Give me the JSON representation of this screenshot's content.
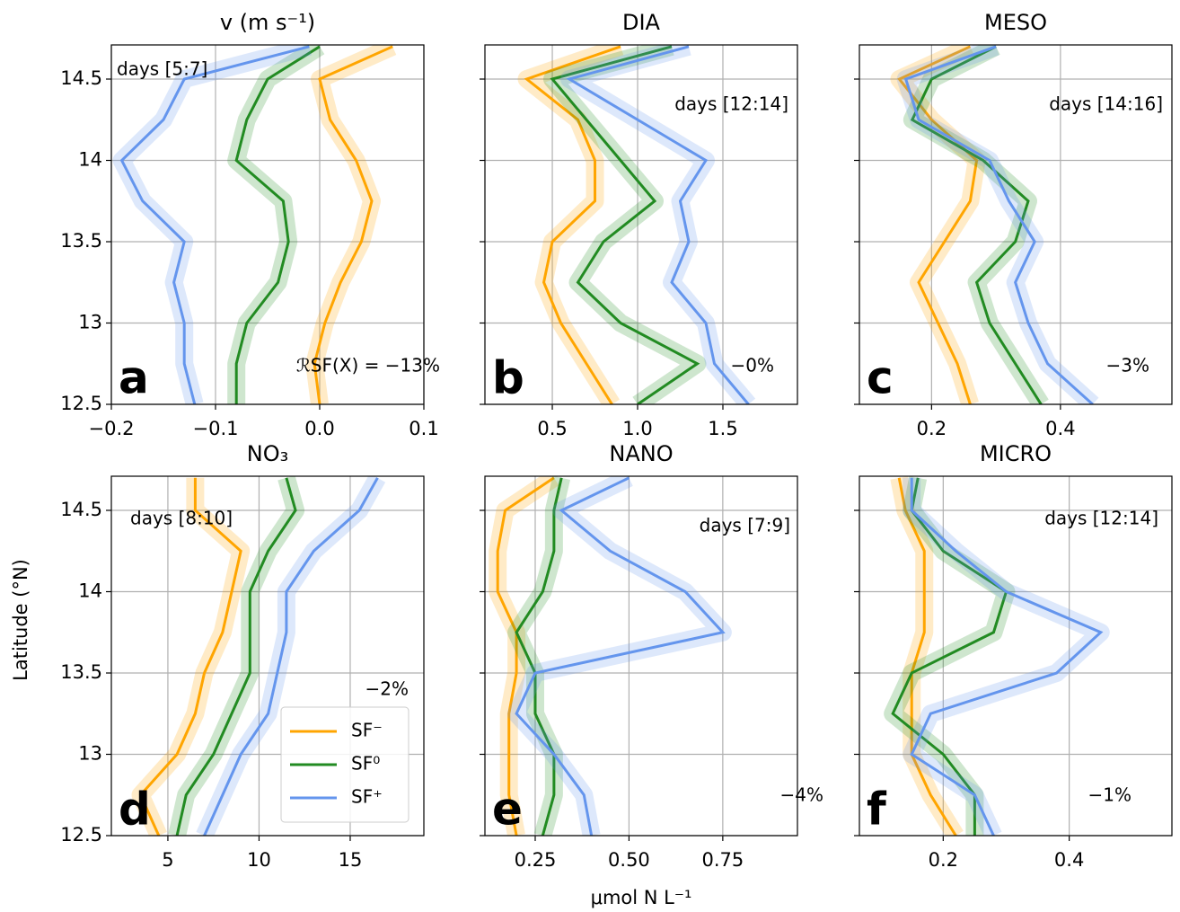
{
  "figure": {
    "xlabel": "μmol N L⁻¹",
    "ylabel": "Latitude (°N)"
  },
  "chart_data": [
    {
      "type": "line",
      "title": "v (m s⁻¹)",
      "panel_label": "a",
      "annotation": "days [5:7]",
      "stat": "ℛSF(X) = −13%",
      "y": [
        12.5,
        12.75,
        13,
        13.25,
        13.5,
        13.75,
        14,
        14.25,
        14.5,
        14.7
      ],
      "xlim": [
        -0.2,
        0.1
      ],
      "xticks": [
        {
          "value": -0.2,
          "label": "−0.2"
        },
        {
          "value": -0.1,
          "label": "−0.1"
        },
        {
          "value": 0,
          "label": "0.0"
        },
        0.1
      ],
      "ylim": [
        12.5,
        14.71
      ],
      "yticks": [
        12.5,
        13,
        13.5,
        14,
        14.5
      ],
      "grid": true,
      "series": [
        {
          "name": "SF⁻",
          "color": "#ffa500",
          "values": [
            0.0,
            -0.005,
            0.005,
            0.02,
            0.04,
            0.05,
            0.035,
            0.01,
            0.0,
            0.07
          ]
        },
        {
          "name": "SF⁰",
          "color": "#228b22",
          "values": [
            -0.08,
            -0.08,
            -0.07,
            -0.04,
            -0.03,
            -0.035,
            -0.08,
            -0.07,
            -0.05,
            0.0
          ]
        },
        {
          "name": "SF⁺",
          "color": "#6495ed",
          "values": [
            -0.12,
            -0.13,
            -0.13,
            -0.14,
            -0.13,
            -0.17,
            -0.19,
            -0.15,
            -0.13,
            -0.01
          ]
        }
      ]
    },
    {
      "type": "line",
      "title": "DIA",
      "panel_label": "b",
      "annotation": "days [12:14]",
      "stat": "−0%",
      "y": [
        12.5,
        12.75,
        13,
        13.25,
        13.5,
        13.75,
        14,
        14.25,
        14.5,
        14.7
      ],
      "xlim": [
        0.105,
        1.937
      ],
      "xticks": [
        0.5,
        {
          "value": 1,
          "label": "1.0"
        },
        1.5
      ],
      "ylim": [
        12.5,
        14.71
      ],
      "yticks": [
        12.5,
        13,
        13.5,
        14,
        14.5
      ],
      "grid": true,
      "series": [
        {
          "name": "SF⁻",
          "color": "#ffa500",
          "values": [
            0.85,
            0.7,
            0.55,
            0.45,
            0.5,
            0.75,
            0.75,
            0.65,
            0.35,
            0.9
          ]
        },
        {
          "name": "SF⁰",
          "color": "#228b22",
          "values": [
            1.0,
            1.35,
            0.9,
            0.65,
            0.8,
            1.1,
            0.9,
            0.7,
            0.5,
            1.2
          ]
        },
        {
          "name": "SF⁺",
          "color": "#6495ed",
          "values": [
            1.65,
            1.45,
            1.4,
            1.2,
            1.3,
            1.25,
            1.4,
            1.0,
            0.6,
            1.3
          ]
        }
      ]
    },
    {
      "type": "line",
      "title": "MESO",
      "panel_label": "c",
      "annotation": "days [14:16]",
      "stat": "−3%",
      "y": [
        12.5,
        12.75,
        13,
        13.25,
        13.5,
        13.75,
        14,
        14.25,
        14.5,
        14.7
      ],
      "xlim": [
        0.088,
        0.573
      ],
      "xticks": [
        0.2,
        0.4
      ],
      "ylim": [
        12.5,
        14.71
      ],
      "yticks": [
        12.5,
        13,
        13.5,
        14,
        14.5
      ],
      "grid": true,
      "series": [
        {
          "name": "SF⁻",
          "color": "#ffa500",
          "values": [
            0.26,
            0.24,
            0.21,
            0.18,
            0.22,
            0.26,
            0.27,
            0.2,
            0.15,
            0.26
          ]
        },
        {
          "name": "SF⁰",
          "color": "#228b22",
          "values": [
            0.37,
            0.33,
            0.29,
            0.27,
            0.33,
            0.35,
            0.28,
            0.17,
            0.2,
            0.3
          ]
        },
        {
          "name": "SF⁺",
          "color": "#6495ed",
          "values": [
            0.45,
            0.38,
            0.35,
            0.33,
            0.36,
            0.32,
            0.29,
            0.18,
            0.16,
            0.3
          ]
        }
      ]
    },
    {
      "type": "line",
      "title": "NO₃",
      "panel_label": "d",
      "annotation": "days [8:10]",
      "stat": "−2%",
      "legend": "lower right",
      "y": [
        12.5,
        12.75,
        13,
        13.25,
        13.5,
        13.75,
        14,
        14.25,
        14.5,
        14.7
      ],
      "xlim": [
        1.9,
        19.04
      ],
      "xticks": [
        5,
        10,
        15
      ],
      "ylim": [
        12.5,
        14.71
      ],
      "yticks": [
        12.5,
        13,
        13.5,
        14,
        14.5
      ],
      "grid": true,
      "series": [
        {
          "name": "SF⁻",
          "color": "#ffa500",
          "values": [
            4.5,
            3.5,
            5.5,
            6.5,
            7,
            8,
            8.5,
            9,
            6.5,
            6.5
          ]
        },
        {
          "name": "SF⁰",
          "color": "#228b22",
          "values": [
            5.5,
            6,
            7.5,
            8.5,
            9.5,
            9.5,
            9.5,
            10.5,
            12,
            11.5
          ]
        },
        {
          "name": "SF⁺",
          "color": "#6495ed",
          "values": [
            7,
            8,
            9,
            10.5,
            11,
            11.5,
            11.5,
            13,
            15.5,
            16.5
          ]
        }
      ]
    },
    {
      "type": "line",
      "title": "NANO",
      "panel_label": "e",
      "annotation": "days [7:9]",
      "stat": "−4%",
      "y": [
        12.5,
        12.75,
        13,
        13.25,
        13.5,
        13.75,
        14,
        14.25,
        14.5,
        14.7
      ],
      "xlim": [
        0.116,
        0.949
      ],
      "xticks": [
        0.25,
        {
          "value": 0.5,
          "label": "0.50"
        },
        0.75
      ],
      "ylim": [
        12.5,
        14.71
      ],
      "yticks": [
        12.5,
        13,
        13.5,
        14,
        14.5
      ],
      "grid": true,
      "series": [
        {
          "name": "SF⁻",
          "color": "#ffa500",
          "values": [
            0.2,
            0.18,
            0.18,
            0.18,
            0.2,
            0.2,
            0.15,
            0.15,
            0.17,
            0.3
          ]
        },
        {
          "name": "SF⁰",
          "color": "#228b22",
          "values": [
            0.27,
            0.3,
            0.3,
            0.25,
            0.25,
            0.2,
            0.27,
            0.3,
            0.3,
            0.32
          ]
        },
        {
          "name": "SF⁺",
          "color": "#6495ed",
          "values": [
            0.4,
            0.38,
            0.3,
            0.2,
            0.25,
            0.75,
            0.65,
            0.45,
            0.32,
            0.5
          ]
        }
      ]
    },
    {
      "type": "line",
      "title": "MICRO",
      "panel_label": "f",
      "annotation": "days [12:14]",
      "stat": "−1%",
      "y": [
        12.5,
        12.75,
        13,
        13.25,
        13.5,
        13.75,
        14,
        14.25,
        14.5,
        14.7
      ],
      "xlim": [
        0.067,
        0.563
      ],
      "xticks": [
        0.2,
        0.4
      ],
      "ylim": [
        12.5,
        14.71
      ],
      "yticks": [
        12.5,
        13,
        13.5,
        14,
        14.5
      ],
      "grid": true,
      "series": [
        {
          "name": "SF⁻",
          "color": "#ffa500",
          "values": [
            0.22,
            0.18,
            0.15,
            0.15,
            0.15,
            0.17,
            0.17,
            0.17,
            0.14,
            0.13
          ]
        },
        {
          "name": "SF⁰",
          "color": "#228b22",
          "values": [
            0.25,
            0.25,
            0.2,
            0.12,
            0.15,
            0.28,
            0.3,
            0.2,
            0.15,
            0.16
          ]
        },
        {
          "name": "SF⁺",
          "color": "#6495ed",
          "values": [
            0.28,
            0.25,
            0.15,
            0.18,
            0.38,
            0.45,
            0.3,
            0.22,
            0.15,
            0.15
          ]
        }
      ]
    }
  ]
}
